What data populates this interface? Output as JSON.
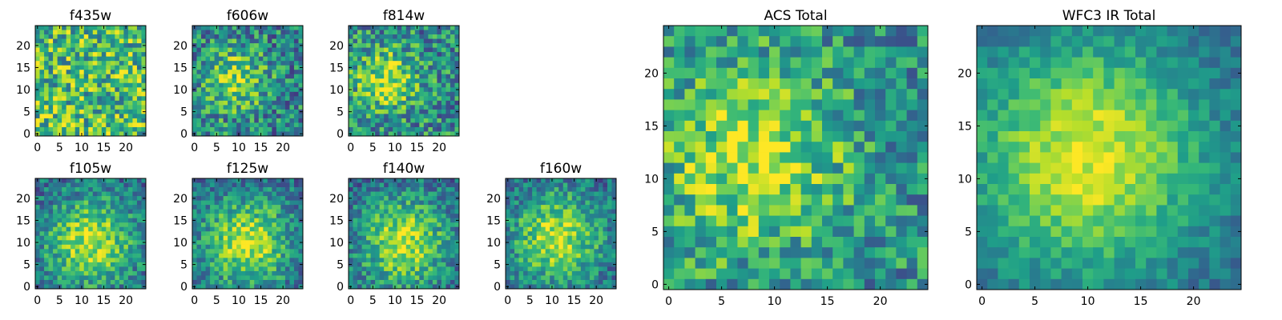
{
  "figure": {
    "colormap": "viridis",
    "background": "#ffffff"
  },
  "chart_data": [
    {
      "type": "heatmap",
      "title": "f435w",
      "grid_size": 25,
      "xlim": [
        0,
        24
      ],
      "ylim": [
        0,
        24
      ],
      "xticks": [
        "0",
        "5",
        "10",
        "15",
        "20"
      ],
      "yticks": [
        "0",
        "5",
        "10",
        "15",
        "20"
      ],
      "seed": 11,
      "peak": null,
      "noise": 0.34,
      "base": 0.68,
      "sigma": 5,
      "amp": 0.0
    },
    {
      "type": "heatmap",
      "title": "f606w",
      "grid_size": 25,
      "xlim": [
        0,
        24
      ],
      "ylim": [
        0,
        24
      ],
      "xticks": [
        "0",
        "5",
        "10",
        "15",
        "20"
      ],
      "yticks": [
        "0",
        "5",
        "10",
        "15",
        "20"
      ],
      "seed": 23,
      "peak": [
        9,
        12
      ],
      "noise": 0.3,
      "base": 0.45,
      "sigma": 5,
      "amp": 0.4
    },
    {
      "type": "heatmap",
      "title": "f814w",
      "grid_size": 25,
      "xlim": [
        0,
        24
      ],
      "ylim": [
        0,
        24
      ],
      "xticks": [
        "0",
        "5",
        "10",
        "15",
        "20"
      ],
      "yticks": [
        "0",
        "5",
        "10",
        "15",
        "20"
      ],
      "seed": 37,
      "peak": [
        8,
        12
      ],
      "noise": 0.3,
      "base": 0.48,
      "sigma": 5,
      "amp": 0.4
    },
    {
      "type": "heatmap",
      "title": "f105w",
      "grid_size": 25,
      "xlim": [
        0,
        24
      ],
      "ylim": [
        0,
        24
      ],
      "xticks": [
        "0",
        "5",
        "10",
        "15",
        "20"
      ],
      "yticks": [
        "0",
        "5",
        "10",
        "15",
        "20"
      ],
      "seed": 41,
      "peak": [
        12,
        10
      ],
      "noise": 0.22,
      "base": 0.35,
      "sigma": 7,
      "amp": 0.55
    },
    {
      "type": "heatmap",
      "title": "f125w",
      "grid_size": 25,
      "xlim": [
        0,
        24
      ],
      "ylim": [
        0,
        24
      ],
      "xticks": [
        "0",
        "5",
        "10",
        "15",
        "20"
      ],
      "yticks": [
        "0",
        "5",
        "10",
        "15",
        "20"
      ],
      "seed": 53,
      "peak": [
        12,
        10
      ],
      "noise": 0.22,
      "base": 0.35,
      "sigma": 7,
      "amp": 0.55
    },
    {
      "type": "heatmap",
      "title": "f140w",
      "grid_size": 25,
      "xlim": [
        0,
        24
      ],
      "ylim": [
        0,
        24
      ],
      "xticks": [
        "0",
        "5",
        "10",
        "15",
        "20"
      ],
      "yticks": [
        "0",
        "5",
        "10",
        "15",
        "20"
      ],
      "seed": 67,
      "peak": [
        12,
        10
      ],
      "noise": 0.22,
      "base": 0.35,
      "sigma": 7,
      "amp": 0.55
    },
    {
      "type": "heatmap",
      "title": "f160w",
      "grid_size": 25,
      "xlim": [
        0,
        24
      ],
      "ylim": [
        0,
        24
      ],
      "xticks": [
        "0",
        "5",
        "10",
        "15",
        "20"
      ],
      "yticks": [
        "0",
        "5",
        "10",
        "15",
        "20"
      ],
      "seed": 79,
      "peak": [
        11,
        11
      ],
      "noise": 0.22,
      "base": 0.35,
      "sigma": 7,
      "amp": 0.55
    },
    {
      "type": "heatmap",
      "title": "ACS Total",
      "grid_size": 25,
      "xlim": [
        0,
        24
      ],
      "ylim": [
        0,
        24
      ],
      "xticks": [
        "0",
        "5",
        "10",
        "15",
        "20"
      ],
      "yticks": [
        "0",
        "5",
        "10",
        "15",
        "20"
      ],
      "seed": 83,
      "peak": [
        8,
        12
      ],
      "noise": 0.26,
      "base": 0.5,
      "sigma": 6,
      "amp": 0.42
    },
    {
      "type": "heatmap",
      "title": "WFC3 IR Total",
      "grid_size": 25,
      "xlim": [
        0,
        24
      ],
      "ylim": [
        0,
        24
      ],
      "xticks": [
        "0",
        "5",
        "10",
        "15",
        "20"
      ],
      "yticks": [
        "0",
        "5",
        "10",
        "15",
        "20"
      ],
      "seed": 97,
      "peak": [
        10,
        12
      ],
      "noise": 0.12,
      "base": 0.32,
      "sigma": 8,
      "amp": 0.62
    }
  ]
}
